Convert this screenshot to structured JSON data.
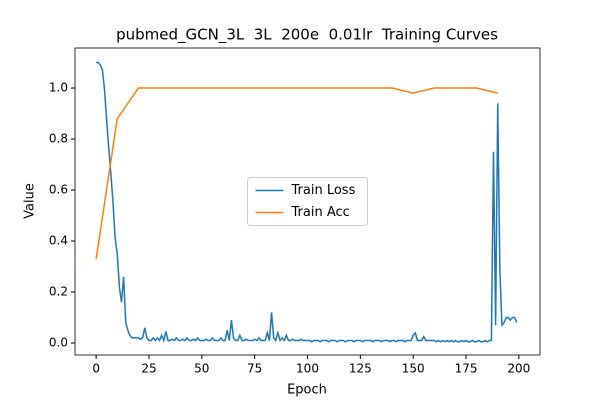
{
  "chart_data": {
    "type": "line",
    "title": "pubmed_GCN_3L  3L  200e  0.01lr  Training Curves",
    "xlabel": "Epoch",
    "ylabel": "Value",
    "xlim": [
      -10,
      210
    ],
    "ylim": [
      -0.047,
      1.157
    ],
    "xticks": [
      0,
      25,
      50,
      75,
      100,
      125,
      150,
      175,
      200
    ],
    "yticks": [
      {
        "value": 0,
        "label": "0.0"
      },
      0.2,
      0.4,
      0.6,
      0.8,
      {
        "value": 1,
        "label": "1.0"
      }
    ],
    "grid": false,
    "legend": "center",
    "series": [
      {
        "name": "Train Loss",
        "color": "#1f77b4",
        "x": [
          0,
          1,
          2,
          3,
          4,
          5,
          6,
          7,
          8,
          9,
          10,
          11,
          12,
          13,
          14,
          15,
          16,
          17,
          18,
          19,
          20,
          21,
          22,
          23,
          24,
          25,
          26,
          27,
          28,
          29,
          30,
          31,
          32,
          33,
          34,
          35,
          36,
          37,
          38,
          39,
          40,
          41,
          42,
          43,
          44,
          45,
          46,
          47,
          48,
          49,
          50,
          51,
          52,
          53,
          54,
          55,
          56,
          57,
          58,
          59,
          60,
          61,
          62,
          63,
          64,
          65,
          66,
          67,
          68,
          69,
          70,
          71,
          72,
          73,
          74,
          75,
          76,
          77,
          78,
          79,
          80,
          81,
          82,
          83,
          84,
          85,
          86,
          87,
          88,
          89,
          90,
          91,
          92,
          93,
          94,
          95,
          96,
          97,
          98,
          99,
          100,
          101,
          102,
          103,
          104,
          105,
          106,
          107,
          108,
          109,
          110,
          111,
          112,
          113,
          114,
          115,
          116,
          117,
          118,
          119,
          120,
          121,
          122,
          123,
          124,
          125,
          126,
          127,
          128,
          129,
          130,
          131,
          132,
          133,
          134,
          135,
          136,
          137,
          138,
          139,
          140,
          141,
          142,
          143,
          144,
          145,
          146,
          147,
          148,
          149,
          150,
          151,
          152,
          153,
          154,
          155,
          156,
          157,
          158,
          159,
          160,
          161,
          162,
          163,
          164,
          165,
          166,
          167,
          168,
          169,
          170,
          171,
          172,
          173,
          174,
          175,
          176,
          177,
          178,
          179,
          180,
          181,
          182,
          183,
          184,
          185,
          186,
          187,
          188,
          189,
          190,
          191,
          192,
          193,
          194,
          195,
          196,
          197,
          198,
          199
        ],
        "values": [
          1.1,
          1.1,
          1.09,
          1.07,
          0.99,
          0.87,
          0.76,
          0.66,
          0.55,
          0.41,
          0.35,
          0.22,
          0.16,
          0.26,
          0.08,
          0.05,
          0.03,
          0.02,
          0.02,
          0.02,
          0.02,
          0.015,
          0.02,
          0.06,
          0.02,
          0.01,
          0.01,
          0.02,
          0.01,
          0.02,
          0.01,
          0.03,
          0.01,
          0.045,
          0.01,
          0.01,
          0.015,
          0.01,
          0.02,
          0.01,
          0.01,
          0.015,
          0.01,
          0.02,
          0.01,
          0.01,
          0.015,
          0.01,
          0.02,
          0.01,
          0.01,
          0.01,
          0.015,
          0.01,
          0.01,
          0.02,
          0.01,
          0.01,
          0.01,
          0.02,
          0.01,
          0.01,
          0.05,
          0.01,
          0.09,
          0.02,
          0.01,
          0.01,
          0.03,
          0.01,
          0.01,
          0.015,
          0.01,
          0.01,
          0.01,
          0.015,
          0.01,
          0.02,
          0.01,
          0.01,
          0.01,
          0.04,
          0.01,
          0.12,
          0.02,
          0.01,
          0.04,
          0.01,
          0.02,
          0.01,
          0.03,
          0.01,
          0.01,
          0.015,
          0.01,
          0.01,
          0.01,
          0.015,
          0.01,
          0.01,
          0.01,
          0.01,
          0.005,
          0.01,
          0.01,
          0.01,
          0.005,
          0.01,
          0.01,
          0.01,
          0.005,
          0.01,
          0.01,
          0.01,
          0.005,
          0.01,
          0.01,
          0.01,
          0.005,
          0.01,
          0.01,
          0.01,
          0.005,
          0.01,
          0.01,
          0.01,
          0.005,
          0.01,
          0.01,
          0.01,
          0.01,
          0.005,
          0.01,
          0.01,
          0.01,
          0.005,
          0.01,
          0.01,
          0.01,
          0.005,
          0.01,
          0.01,
          0.005,
          0.01,
          0.01,
          0.01,
          0.005,
          0.01,
          0.01,
          0.01,
          0.03,
          0.04,
          0.01,
          0.01,
          0.01,
          0.025,
          0.01,
          0.01,
          0.01,
          0.01,
          0.01,
          0.005,
          0.01,
          0.005,
          0.01,
          0.005,
          0.01,
          0.005,
          0.01,
          0.005,
          0.01,
          0.005,
          0.005,
          0.01,
          0.005,
          0.01,
          0.005,
          0.005,
          0.01,
          0.005,
          0.005,
          0.01,
          0.005,
          0.005,
          0.01,
          0.005,
          0.01,
          0.01,
          0.75,
          0.07,
          0.94,
          0.29,
          0.07,
          0.08,
          0.1,
          0.1,
          0.09,
          0.1,
          0.1,
          0.08
        ]
      },
      {
        "name": "Train Acc",
        "color": "#ff7f0e",
        "x": [
          0,
          10,
          20,
          30,
          40,
          50,
          60,
          70,
          80,
          90,
          100,
          110,
          120,
          130,
          140,
          150,
          160,
          170,
          180,
          190
        ],
        "values": [
          0.33,
          0.88,
          1.0,
          1.0,
          1.0,
          1.0,
          1.0,
          1.0,
          1.0,
          1.0,
          1.0,
          1.0,
          1.0,
          1.0,
          1.0,
          0.98,
          1.0,
          1.0,
          1.0,
          0.98
        ]
      }
    ]
  }
}
